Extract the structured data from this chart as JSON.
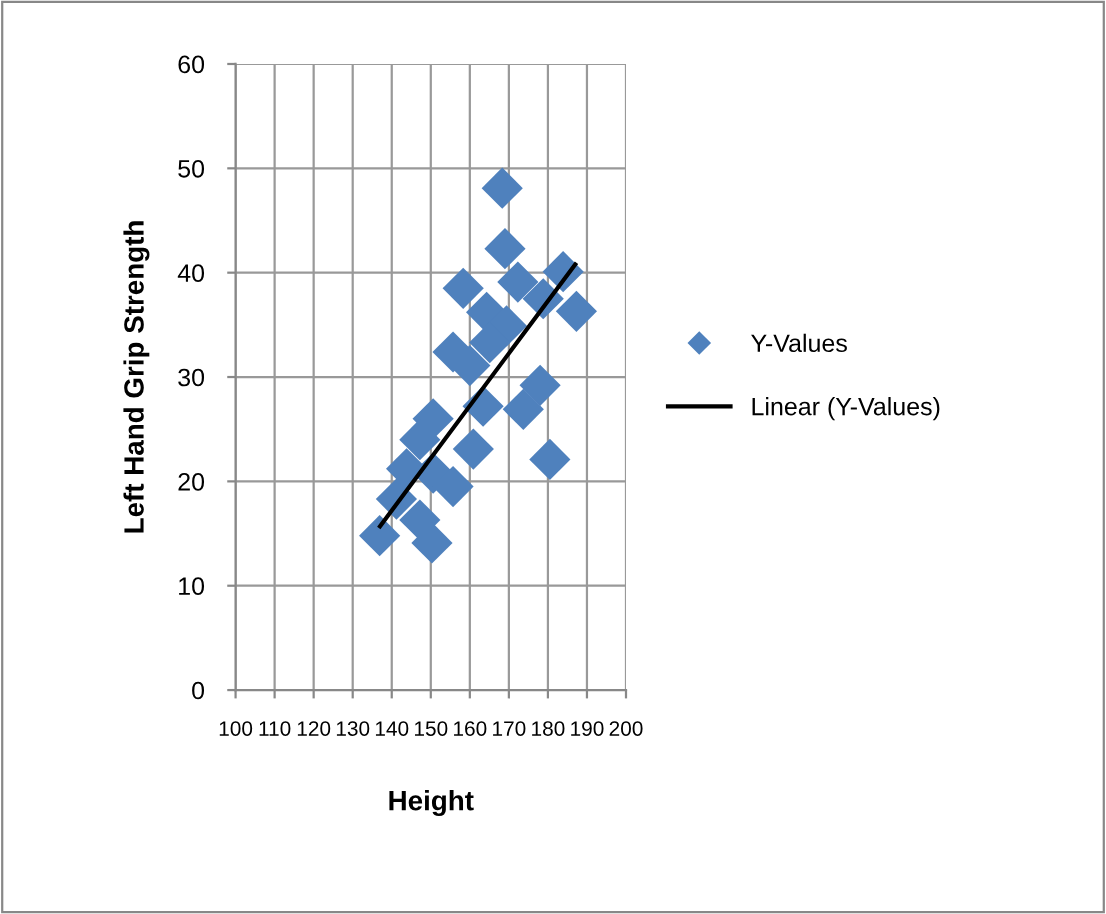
{
  "chart_data": {
    "type": "scatter",
    "xlabel": "Height",
    "ylabel": "Left Hand Grip Strength",
    "xlim": [
      100,
      200
    ],
    "xticks": [
      100,
      110,
      120,
      130,
      140,
      150,
      160,
      170,
      180,
      190,
      200
    ],
    "ylim": [
      0,
      60
    ],
    "yticks": [
      0,
      10,
      20,
      30,
      40,
      50,
      60
    ],
    "grid": true,
    "legend": "right",
    "series": [
      {
        "name": "Y-Values",
        "marker": "diamond",
        "color": "#4f81bd",
        "x": [
          168.3,
          169,
          158.3,
          172.3,
          183.9,
          187.3,
          178.8,
          164.3,
          169.4,
          165.1,
          155.7,
          160,
          178,
          173.7,
          163.4,
          150.6,
          160.9,
          180.5,
          147.2,
          143.8,
          150.6,
          155.7,
          141.2,
          147.2,
          136.9,
          150.3
        ],
        "values": [
          48.1,
          42.3,
          38.5,
          39.1,
          40.1,
          36.3,
          37.5,
          36.2,
          34.9,
          33.3,
          32.4,
          31.1,
          29.2,
          26.9,
          27.2,
          26.0,
          23.1,
          22.1,
          24.0,
          21.2,
          20.8,
          19.5,
          18.3,
          16.3,
          14.8,
          14.1
        ]
      },
      {
        "name": "Linear (Y-Values)",
        "type": "line",
        "color": "#000000",
        "x": [
          137,
          187
        ],
        "values": [
          15.7,
          40.8
        ]
      }
    ]
  }
}
